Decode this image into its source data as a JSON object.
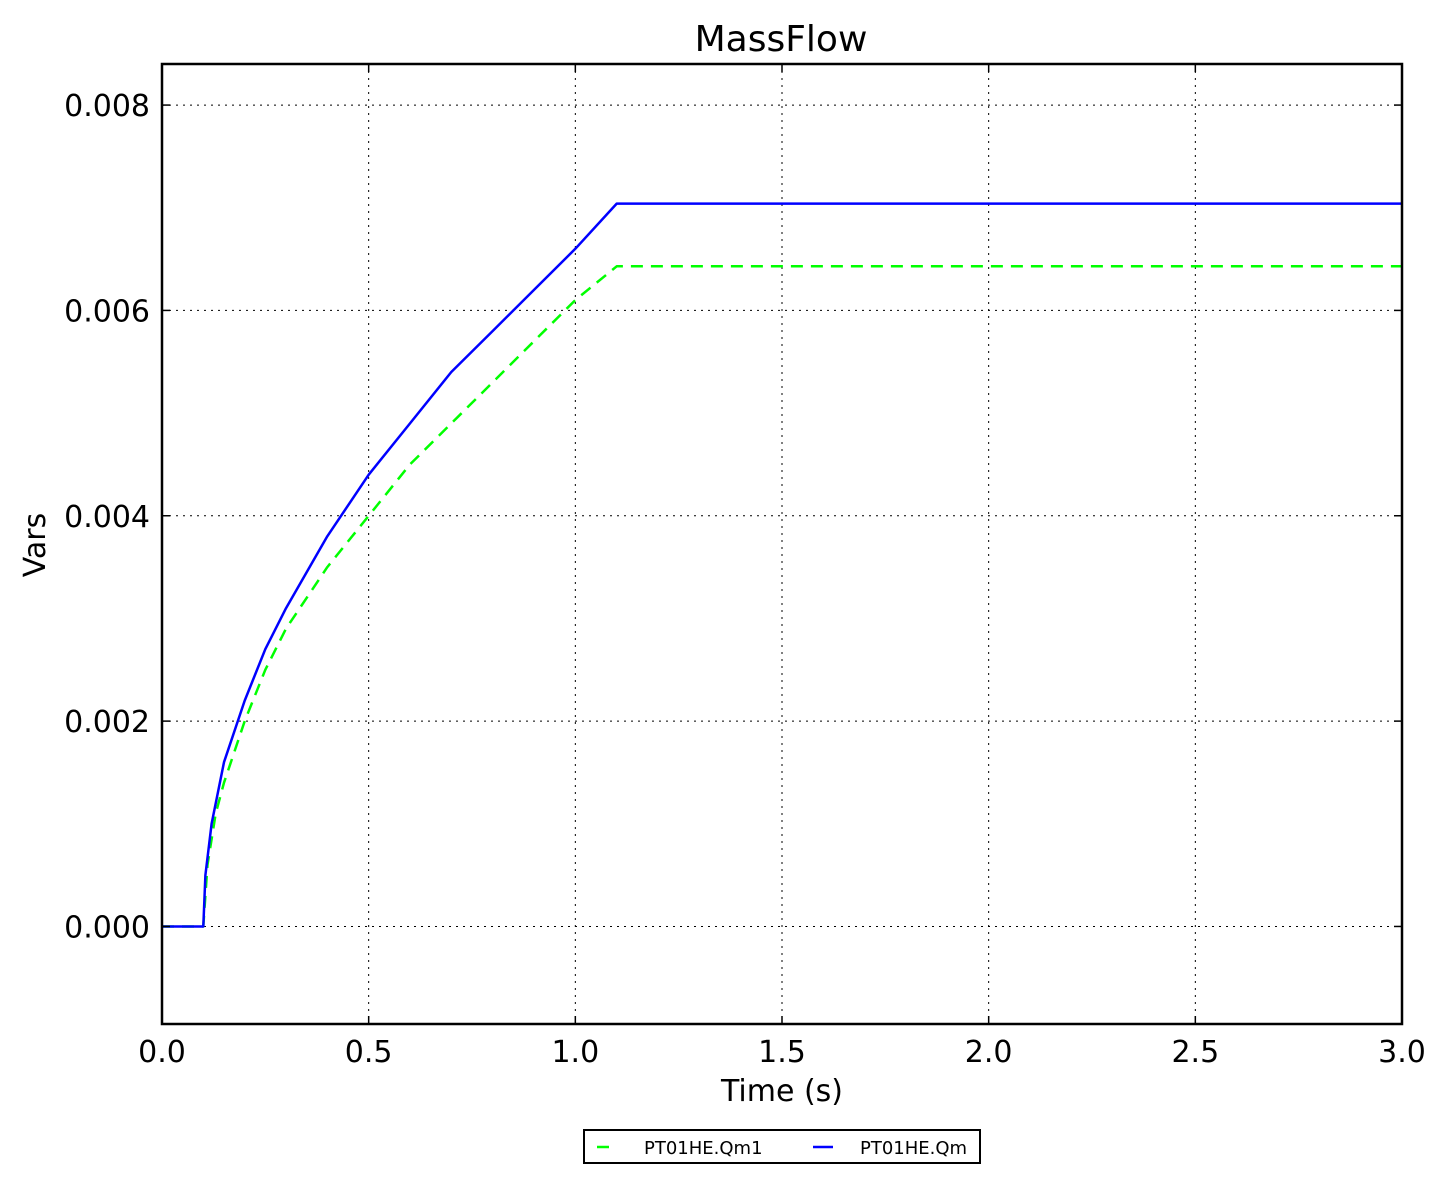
{
  "chart_data": {
    "type": "line",
    "title": "MassFlow",
    "xlabel": "Time (s)",
    "ylabel": "Vars",
    "xlim": [
      0.0,
      3.0
    ],
    "ylim": [
      -0.00095,
      0.0084
    ],
    "xticks": [
      0.0,
      0.5,
      1.0,
      1.5,
      2.0,
      2.5,
      3.0
    ],
    "xtick_labels": [
      "0.0",
      "0.5",
      "1.0",
      "1.5",
      "2.0",
      "2.5",
      "3.0"
    ],
    "yticks": [
      0.0,
      0.002,
      0.004,
      0.006,
      0.008
    ],
    "ytick_labels": [
      "0.000",
      "0.002",
      "0.004",
      "0.006",
      "0.008"
    ],
    "grid": true,
    "legend_position": "bottom-center",
    "series": [
      {
        "name": "PT01HE.Qm1",
        "color": "#00ff00",
        "style": "dashed",
        "x": [
          0.0,
          0.1,
          0.11,
          0.13,
          0.15,
          0.2,
          0.25,
          0.3,
          0.4,
          0.5,
          0.6,
          0.7,
          0.8,
          0.9,
          1.0,
          1.1,
          1.5,
          2.0,
          2.5,
          3.0
        ],
        "y": [
          0.0,
          0.0,
          0.0006,
          0.0011,
          0.0014,
          0.002,
          0.0025,
          0.0029,
          0.0035,
          0.004,
          0.0045,
          0.0049,
          0.0053,
          0.0057,
          0.0061,
          0.00643,
          0.00643,
          0.00643,
          0.00643,
          0.00643
        ]
      },
      {
        "name": "PT01HE.Qm",
        "color": "#0000ff",
        "style": "solid",
        "x": [
          0.0,
          0.1,
          0.105,
          0.12,
          0.15,
          0.2,
          0.25,
          0.3,
          0.4,
          0.5,
          0.6,
          0.7,
          0.8,
          0.9,
          1.0,
          1.1,
          1.5,
          2.0,
          2.5,
          3.0
        ],
        "y": [
          0.0,
          0.0,
          0.0005,
          0.001,
          0.0016,
          0.0022,
          0.0027,
          0.0031,
          0.0038,
          0.0044,
          0.0049,
          0.0054,
          0.0058,
          0.0062,
          0.0066,
          0.00704,
          0.00704,
          0.00704,
          0.00704,
          0.00704
        ]
      }
    ]
  }
}
